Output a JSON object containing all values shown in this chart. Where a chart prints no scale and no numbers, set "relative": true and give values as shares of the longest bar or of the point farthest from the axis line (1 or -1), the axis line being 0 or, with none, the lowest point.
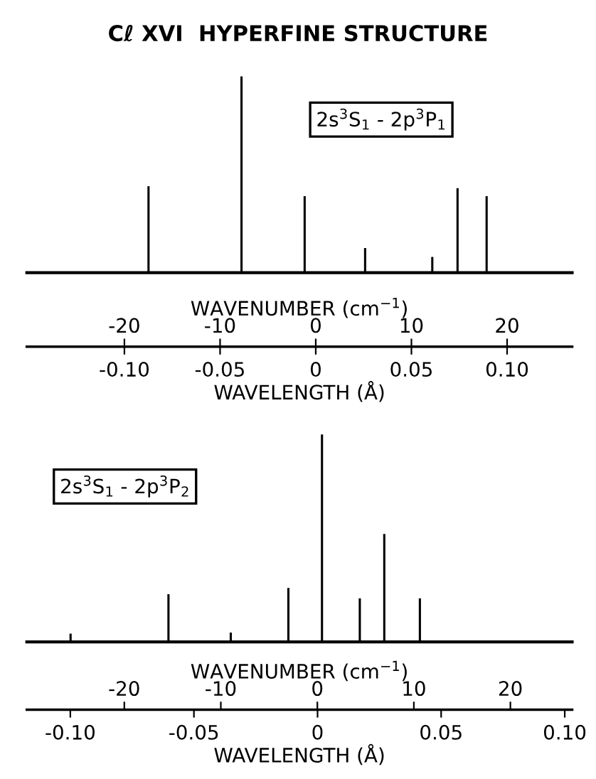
{
  "chart_data": [
    {
      "type": "bar",
      "title": "Cℓ XVI  HYPERFINE STRUCTURE",
      "relative": true,
      "xlabel": "WAVELENGTH (Å)",
      "x2label": "WAVENUMBER (cm$^{−1}$)",
      "annotations": [
        "2s$^{3}$S$_{1}$ - 2p$^{3}$P$_{1}$"
      ],
      "x": [
        -0.0874,
        -0.0388,
        -0.0058,
        0.0258,
        0.0609,
        0.0741,
        0.0893
      ],
      "series": [
        {
          "color": "#000000",
          "values": [
            0.44,
            1,
            0.39,
            0.125,
            0.08,
            0.43,
            0.39
          ]
        }
      ],
      "xlim": [
        -0.151,
        0.134
      ],
      "xticks": [
        {
          "value": -0.1,
          "label": "-0.10"
        },
        {
          "value": -0.05,
          "label": "-0.05"
        },
        0,
        0.05,
        {
          "value": 0.1,
          "label": "0.10"
        }
      ],
      "x2lim": [
        -30.2,
        26.8
      ],
      "x2ticks": [
        -20,
        -10,
        0,
        10,
        20
      ]
    },
    {
      "type": "bar",
      "relative": true,
      "xlabel": "WAVELENGTH (Å)",
      "x2label": "WAVENUMBER (cm$^{−1}$)",
      "annotations": [
        "2s$^{3}$S$_{1}$ - 2p$^{3}$P$_{2}$"
      ],
      "x": [
        -0.0999,
        -0.0603,
        -0.0351,
        -0.0118,
        0.0018,
        0.0171,
        0.027,
        0.0414
      ],
      "series": [
        {
          "color": "#000000",
          "values": [
            0.04,
            0.23,
            0.045,
            0.26,
            1,
            0.21,
            0.52,
            0.21
          ]
        }
      ],
      "xlim": [
        -0.1176,
        0.103
      ],
      "xticks": [
        {
          "value": -0.1,
          "label": "-0.10"
        },
        {
          "value": -0.05,
          "label": "-0.05"
        },
        0,
        0.05,
        {
          "value": 0.1,
          "label": "0.10"
        }
      ],
      "x2lim": [
        -30.1,
        26.4
      ],
      "x2ticks": [
        -20,
        -10,
        0,
        10,
        20
      ]
    }
  ]
}
